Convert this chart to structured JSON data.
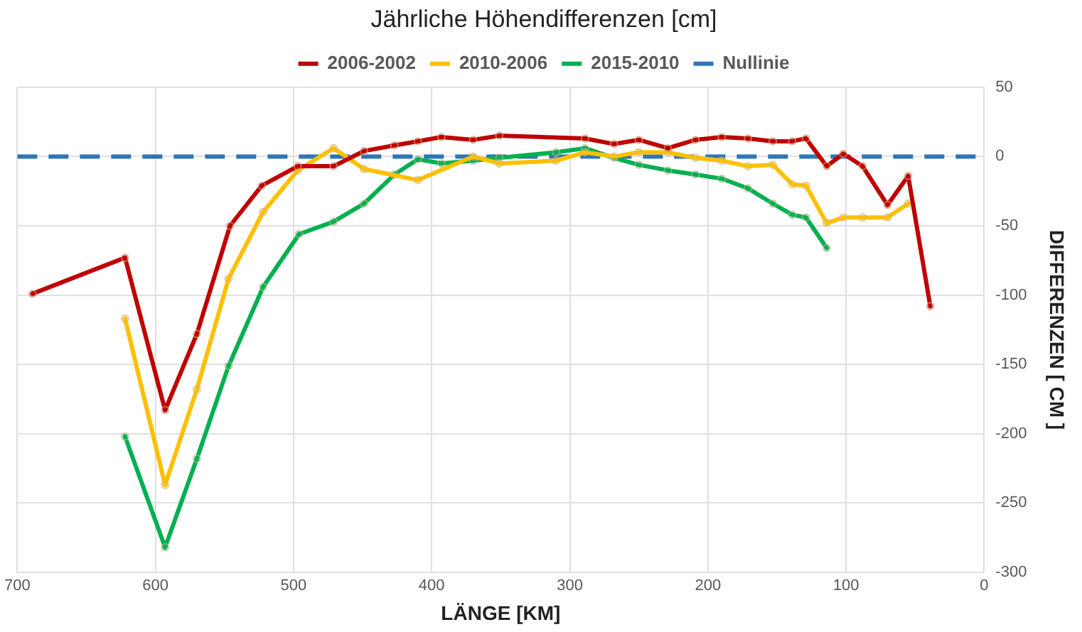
{
  "chart_data": {
    "type": "line",
    "title": "Jährliche Höhendifferenzen [cm]",
    "xlabel": "LÄNGE [KM]",
    "ylabel": "DIFFERENZEN [ CM ]",
    "xlim": [
      700,
      0
    ],
    "xticks": [
      700,
      600,
      500,
      400,
      300,
      200,
      100,
      0
    ],
    "ylim": [
      -300,
      50
    ],
    "yticks": [
      -300,
      -250,
      -200,
      -150,
      -100,
      -50,
      0,
      50
    ],
    "grid": true,
    "legend": "top",
    "marker": "circle",
    "line_style": "solid",
    "series": [
      {
        "name": "2006-2002",
        "color": "#c00000",
        "x": [
          689,
          622,
          593,
          570,
          546,
          523,
          497,
          471,
          449,
          427,
          410,
          393,
          370,
          351,
          289,
          268,
          250,
          229,
          209,
          190,
          171,
          153,
          139,
          129,
          114,
          102,
          88,
          70,
          55,
          39
        ],
        "values": [
          -99,
          -73,
          -183,
          -128,
          -50,
          -21,
          -7,
          -7,
          4,
          8,
          11,
          14,
          12,
          15,
          13,
          9,
          12,
          6,
          12,
          14,
          13,
          11,
          11,
          13,
          -7,
          2,
          -7,
          -35,
          -14,
          -108
        ]
      },
      {
        "name": "2010-2006",
        "color": "#ffc000",
        "x": [
          622,
          593,
          570,
          547,
          522,
          497,
          471,
          449,
          410,
          370,
          351,
          310,
          289,
          268,
          250,
          229,
          209,
          190,
          171,
          153,
          139,
          129,
          114,
          102,
          88,
          70,
          55
        ],
        "values": [
          -117,
          -237,
          -168,
          -88,
          -40,
          -10,
          6,
          -9,
          -17,
          0,
          -5,
          -3,
          3,
          0,
          3,
          3,
          -1,
          -3,
          -7,
          -6,
          -20,
          -21,
          -48,
          -44,
          -44,
          -44,
          -34
        ]
      },
      {
        "name": "2015-2010",
        "color": "#00b050",
        "x": [
          622,
          593,
          570,
          547,
          522,
          496,
          471,
          449,
          427,
          410,
          393,
          370,
          351,
          310,
          289,
          268,
          250,
          229,
          209,
          190,
          171,
          153,
          139,
          129,
          114
        ],
        "values": [
          -202,
          -282,
          -218,
          -151,
          -94,
          -56,
          -47,
          -34,
          -13,
          -2,
          -5,
          -3,
          -1,
          3,
          6,
          -1,
          -6,
          -10,
          -13,
          -16,
          -23,
          -34,
          -42,
          -44,
          -66
        ]
      }
    ],
    "ref_lines": [
      {
        "axis": "y",
        "value": 0,
        "label": "Nullinie",
        "color": "#2e75b6",
        "line_style": "dashed"
      }
    ]
  }
}
